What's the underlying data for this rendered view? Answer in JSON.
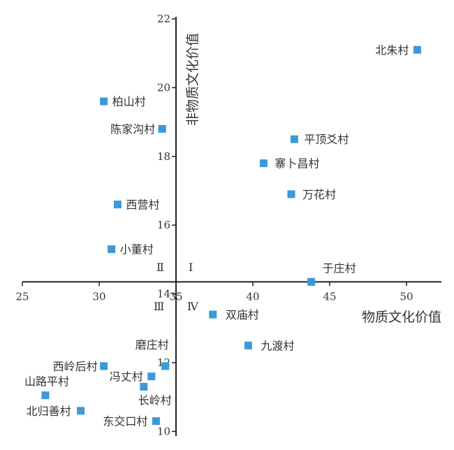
{
  "chart_data": {
    "type": "scatter",
    "xlabel": "物质文化价值",
    "ylabel": "非物质文化价值",
    "xlim": [
      25,
      52
    ],
    "ylim": [
      10,
      22
    ],
    "x_axis_crosses_y_at": 14.35,
    "y_axis_crosses_x_at": 35,
    "x_ticks": [
      25,
      30,
      35,
      40,
      45,
      50
    ],
    "y_ticks": [
      10,
      12,
      14,
      16,
      18,
      20,
      22
    ],
    "marker_color": "#3a9ad9",
    "quadrant_labels": [
      "Ⅰ",
      "Ⅱ",
      "Ⅲ",
      "Ⅳ"
    ],
    "points": [
      {
        "name": "北朱村",
        "x": 50.7,
        "y": 21.1
      },
      {
        "name": "柏山村",
        "x": 30.3,
        "y": 19.6
      },
      {
        "name": "陈家沟村",
        "x": 34.1,
        "y": 18.8
      },
      {
        "name": "平顶爻村",
        "x": 42.7,
        "y": 18.5
      },
      {
        "name": "寨卜昌村",
        "x": 40.7,
        "y": 17.8
      },
      {
        "name": "万花村",
        "x": 42.5,
        "y": 16.9
      },
      {
        "name": "西营村",
        "x": 31.2,
        "y": 16.6
      },
      {
        "name": "小董村",
        "x": 30.8,
        "y": 15.3
      },
      {
        "name": "于庄村",
        "x": 43.8,
        "y": 14.35
      },
      {
        "name": "双庙村",
        "x": 37.4,
        "y": 13.4
      },
      {
        "name": "九渡村",
        "x": 39.7,
        "y": 12.5
      },
      {
        "name": "磨庄村",
        "x": 34.3,
        "y": 11.9
      },
      {
        "name": "西岭后村",
        "x": 30.3,
        "y": 11.9
      },
      {
        "name": "冯丈村",
        "x": 33.4,
        "y": 11.6
      },
      {
        "name": "长岭村",
        "x": 32.9,
        "y": 11.3
      },
      {
        "name": "山路平村",
        "x": 26.5,
        "y": 11.05
      },
      {
        "name": "北归善村",
        "x": 28.8,
        "y": 10.6
      },
      {
        "name": "东交口村",
        "x": 33.7,
        "y": 10.3
      }
    ]
  }
}
